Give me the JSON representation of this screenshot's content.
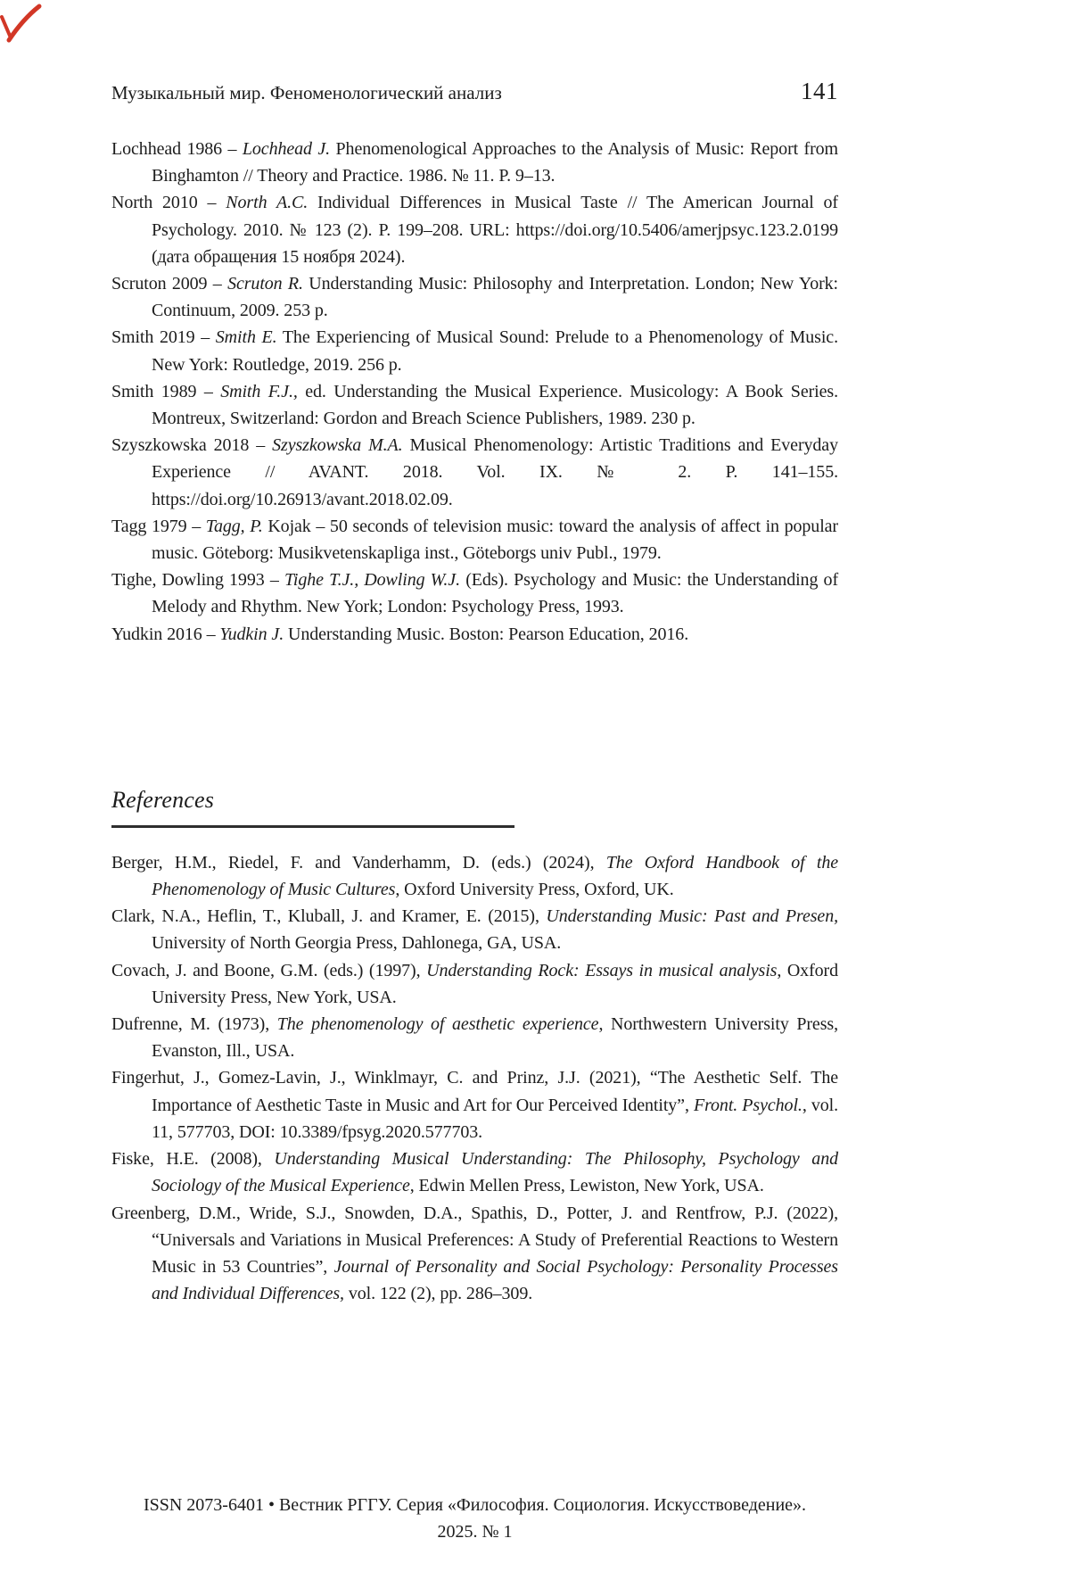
{
  "header": {
    "running_title": "Музыкальный мир. Феноменологический анализ",
    "page_number": "141"
  },
  "bibliography": {
    "entries": [
      {
        "segments": [
          {
            "t": "Lochhead 1986 – ",
            "i": false
          },
          {
            "t": "Lochhead J.",
            "i": true
          },
          {
            "t": " Phenomenological Approaches to the Analysis of Music: Report from Binghamton // Theory and Practice. 1986. № 11. P. 9–13.",
            "i": false
          }
        ]
      },
      {
        "segments": [
          {
            "t": "North 2010 – ",
            "i": false
          },
          {
            "t": "North A.C.",
            "i": true
          },
          {
            "t": " Individual Differences in Musical Taste // The American Journal of Psychology. 2010. № 123 (2). P. 199–208. URL: https://doi.org/10.5406/amerj­psyc.123.2.0199 (дата обращения 15 ноября 2024).",
            "i": false
          }
        ]
      },
      {
        "segments": [
          {
            "t": "Scruton 2009 – ",
            "i": false
          },
          {
            "t": "Scruton R.",
            "i": true
          },
          {
            "t": " Understanding Music: Philosophy and Interpretation. London; New York: Continuum, 2009. 253 p.",
            "i": false
          }
        ]
      },
      {
        "segments": [
          {
            "t": "Smith 2019 – ",
            "i": false
          },
          {
            "t": "Smith E.",
            "i": true
          },
          {
            "t": " The Experiencing of Musical Sound: Prelude to a Phenomenology of Music. New York: Routledge, 2019. 256 p.",
            "i": false
          }
        ]
      },
      {
        "segments": [
          {
            "t": "Smith 1989 – ",
            "i": false
          },
          {
            "t": "Smith F.J.,",
            "i": true
          },
          {
            "t": " ed. Understanding the Musical Experience. Musicology: A Book Series. Montreux, Switzerland: Gordon and Breach Science Publishers, 1989. 230 p.",
            "i": false
          }
        ]
      },
      {
        "segments": [
          {
            "t": "Szyszkowska 2018 – ",
            "i": false
          },
          {
            "t": "Szyszkowska M.A.",
            "i": true
          },
          {
            "t": " Musical Phenomenology: Artistic Traditions and Everyday Experience // AVANT. 2018. Vol. IX. № 2. P. 141–155. https://doi.org/10.26913/avant.2018.02.09.",
            "i": false
          }
        ]
      },
      {
        "segments": [
          {
            "t": "Tagg 1979 – ",
            "i": false
          },
          {
            "t": "Tagg, P.",
            "i": true
          },
          {
            "t": " Kojak – 50 seconds of television music: toward the analysis of af­fect in popular music. Göteborg: Musikvetenskapliga inst., Göteborgs univ Publ., 1979.",
            "i": false
          }
        ]
      },
      {
        "segments": [
          {
            "t": "Tighe, Dowling 1993 – ",
            "i": false
          },
          {
            "t": "Tighe T.J., Dowling W.J.",
            "i": true
          },
          {
            "t": " (Eds). Psychology and Music: the Understanding of Melody and Rhythm. New York; London: Psychology Press, 1993.",
            "i": false
          }
        ]
      },
      {
        "segments": [
          {
            "t": "Yudkin 2016 – ",
            "i": false
          },
          {
            "t": "Yudkin J.",
            "i": true
          },
          {
            "t": " Understanding Music. Boston: Pearson Education, 2016.",
            "i": false
          }
        ]
      }
    ]
  },
  "references_section": {
    "title": "References",
    "entries": [
      {
        "segments": [
          {
            "t": "Berger, H.M., Riedel, F. and Vanderhamm, D. (eds.) (2024), ",
            "i": false
          },
          {
            "t": "The Oxford Handbook of the Phenomenology of Music Cultures",
            "i": true
          },
          {
            "t": ", Oxford University Press, Oxford, UK.",
            "i": false
          }
        ]
      },
      {
        "segments": [
          {
            "t": "Clark, N.A., Heflin, T., Kluball, J. and Kramer, E. (2015), ",
            "i": false
          },
          {
            "t": "Understanding Music: Past and Presen,",
            "i": true
          },
          {
            "t": " University of North Georgia Press, Dahlonega, GA, USA.",
            "i": false
          }
        ]
      },
      {
        "segments": [
          {
            "t": "Covach, J. and Boone, G.M. (eds.) (1997), ",
            "i": false
          },
          {
            "t": "Understanding Rock: Essays in musical analy­sis",
            "i": true
          },
          {
            "t": ", Oxford University Press, New York, USA.",
            "i": false
          }
        ]
      },
      {
        "segments": [
          {
            "t": "Dufrenne, M. (1973), ",
            "i": false
          },
          {
            "t": "The phenomenology of aesthetic experience",
            "i": true
          },
          {
            "t": ", Northwestern University Press, Evanston, Ill., USA.",
            "i": false
          }
        ]
      },
      {
        "segments": [
          {
            "t": "Fingerhut, J., Gomez-Lavin, J., Winklmayr, C. and Prinz, J.J. (2021), “The Aesthetic Self. The Importance of Aesthetic Taste in Music and Art for Our Perceived Identity”, ",
            "i": false
          },
          {
            "t": "Front. Psychol.",
            "i": true
          },
          {
            "t": ", vol. 11, 577703, DOI: 10.3389/fpsyg.2020.577703.",
            "i": false
          }
        ]
      },
      {
        "segments": [
          {
            "t": "Fiske, H.E. (2008), ",
            "i": false
          },
          {
            "t": "Understanding Musical Understanding: The Philosophy, Psychology and Sociology of the Musical Experience",
            "i": true
          },
          {
            "t": ", Edwin Mellen Press, Lewiston, New York, USA.",
            "i": false
          }
        ]
      },
      {
        "segments": [
          {
            "t": "Greenberg, D.M., Wride, S.J., Snowden, D.A., Spathis, D., Potter, J. and Rentfrow, P.J. (2022), “Universals and Variations in Musical Preferences: A Study of Preferential Reactions to Western Music in 53 Countries”, ",
            "i": false
          },
          {
            "t": "Journal of Personality and Social Psychology: Personality Processes and Individual Differences,",
            "i": true
          },
          {
            "t": " vol. 122 (2), pp. 286–309.",
            "i": false
          }
        ]
      }
    ]
  },
  "footer": {
    "line1": "ISSN 2073-6401 • Вестник РГГУ.  Серия «Философия. Социология. Искусствоведение».",
    "line2": "2025. № 1"
  },
  "colors": {
    "text": "#1c1c1c",
    "rule": "#2e2e2e",
    "pen_mark": "#d23726"
  }
}
